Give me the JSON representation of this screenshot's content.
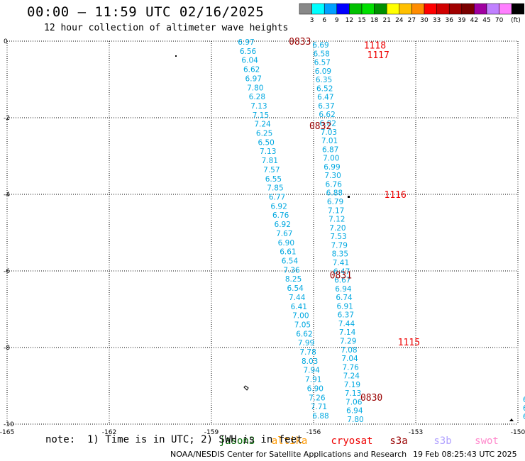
{
  "title": "00:00 – 11:59 UTC 02/16/2025",
  "subtitle": "12 hour collection of altimeter wave heights",
  "note": "note:  1) Time is in UTC; 2) SWH is in feet",
  "credit": "NOAA/NESDIS Center for Satellite Applications and Research",
  "timestamp": "19 Feb 08:25:43 UTC 2025",
  "colorbar": {
    "unit": "(ft)",
    "colors": [
      "#888888",
      "#00ffff",
      "#00a0ff",
      "#0000ff",
      "#00c000",
      "#00e000",
      "#009000",
      "#ffff00",
      "#ffc000",
      "#ff8c00",
      "#ff0000",
      "#d00000",
      "#a00000",
      "#7a0000",
      "#a000a0",
      "#c080ff",
      "#ff80ff",
      "#000000"
    ],
    "labels": [
      "3",
      "6",
      "9",
      "12",
      "15",
      "18",
      "21",
      "24",
      "27",
      "30",
      "33",
      "36",
      "39",
      "42",
      "45",
      "70"
    ]
  },
  "satellites": [
    {
      "name": "jason3",
      "color": "#006600"
    },
    {
      "name": "altika",
      "color": "#ff9900"
    },
    {
      "name": "cryosat",
      "color": "#ee0000"
    },
    {
      "name": "s3a",
      "color": "#990000"
    },
    {
      "name": "s3b",
      "color": "#b0a0ff"
    },
    {
      "name": "swot",
      "color": "#ff88cc"
    }
  ],
  "axes": {
    "lon_ticks": [
      "-165",
      "-162",
      "-159",
      "-156",
      "-153",
      "-150"
    ],
    "lat_ticks": [
      "0",
      "-2",
      "-4",
      "-6",
      "-8",
      "-10"
    ]
  },
  "track_labels": [
    {
      "text": "0833",
      "lon": -156.4,
      "lat": 0.0,
      "color": "#990000"
    },
    {
      "text": "0832",
      "lon": -155.8,
      "lat": -2.2,
      "color": "#990000"
    },
    {
      "text": "0831",
      "lon": -155.2,
      "lat": -6.1,
      "color": "#990000"
    },
    {
      "text": "0830",
      "lon": -154.3,
      "lat": -9.3,
      "color": "#990000"
    },
    {
      "text": "1118",
      "lon": -154.2,
      "lat": -0.1,
      "color": "#ee0000"
    },
    {
      "text": "1117",
      "lon": -154.1,
      "lat": -0.35,
      "color": "#ee0000"
    },
    {
      "text": "1116",
      "lon": -153.6,
      "lat": -4.0,
      "color": "#ee0000"
    },
    {
      "text": "1115",
      "lon": -153.2,
      "lat": -7.85,
      "color": "#ee0000"
    }
  ],
  "track_0833_values": [
    "6.97",
    "6.56",
    "6.04",
    "6.62",
    "6.97",
    "7.80",
    "6.28",
    "7.13",
    "7.15",
    "7.24",
    "6.25",
    "6.50",
    "7.13",
    "7.81",
    "7.57",
    "6.55",
    "7.85",
    "6.77",
    "6.92",
    "6.76",
    "6.92",
    "7.67",
    "6.90",
    "6.61",
    "6.54",
    "7.36",
    "8.25",
    "6.54",
    "7.44",
    "6.41",
    "7.00",
    "7.05",
    "6.62",
    "7.99",
    "7.78",
    "8.03",
    "7.94",
    "7.91",
    "6.90",
    "7.26",
    "7.71",
    "6.88"
  ],
  "track_1118_values": [
    "6.69",
    "6.58",
    "6.57",
    "6.09",
    "6.35",
    "6.52",
    "6.47",
    "6.37",
    "6.62",
    "6.82",
    "7.03",
    "7.01",
    "6.87",
    "7.00",
    "6.99",
    "7.30",
    "6.76",
    "6.88",
    "6.79",
    "7.17",
    "7.12",
    "7.20",
    "7.53",
    "7.79",
    "8.35",
    "7.41",
    "6.47",
    "6.67",
    "6.94",
    "6.74",
    "6.91",
    "6.37",
    "7.44",
    "7.14",
    "7.29",
    "7.08",
    "7.04",
    "7.76",
    "7.24",
    "7.19",
    "7.13",
    "7.06",
    "6.94",
    "7.80"
  ],
  "edge_values": [
    "6",
    "6",
    "6"
  ]
}
